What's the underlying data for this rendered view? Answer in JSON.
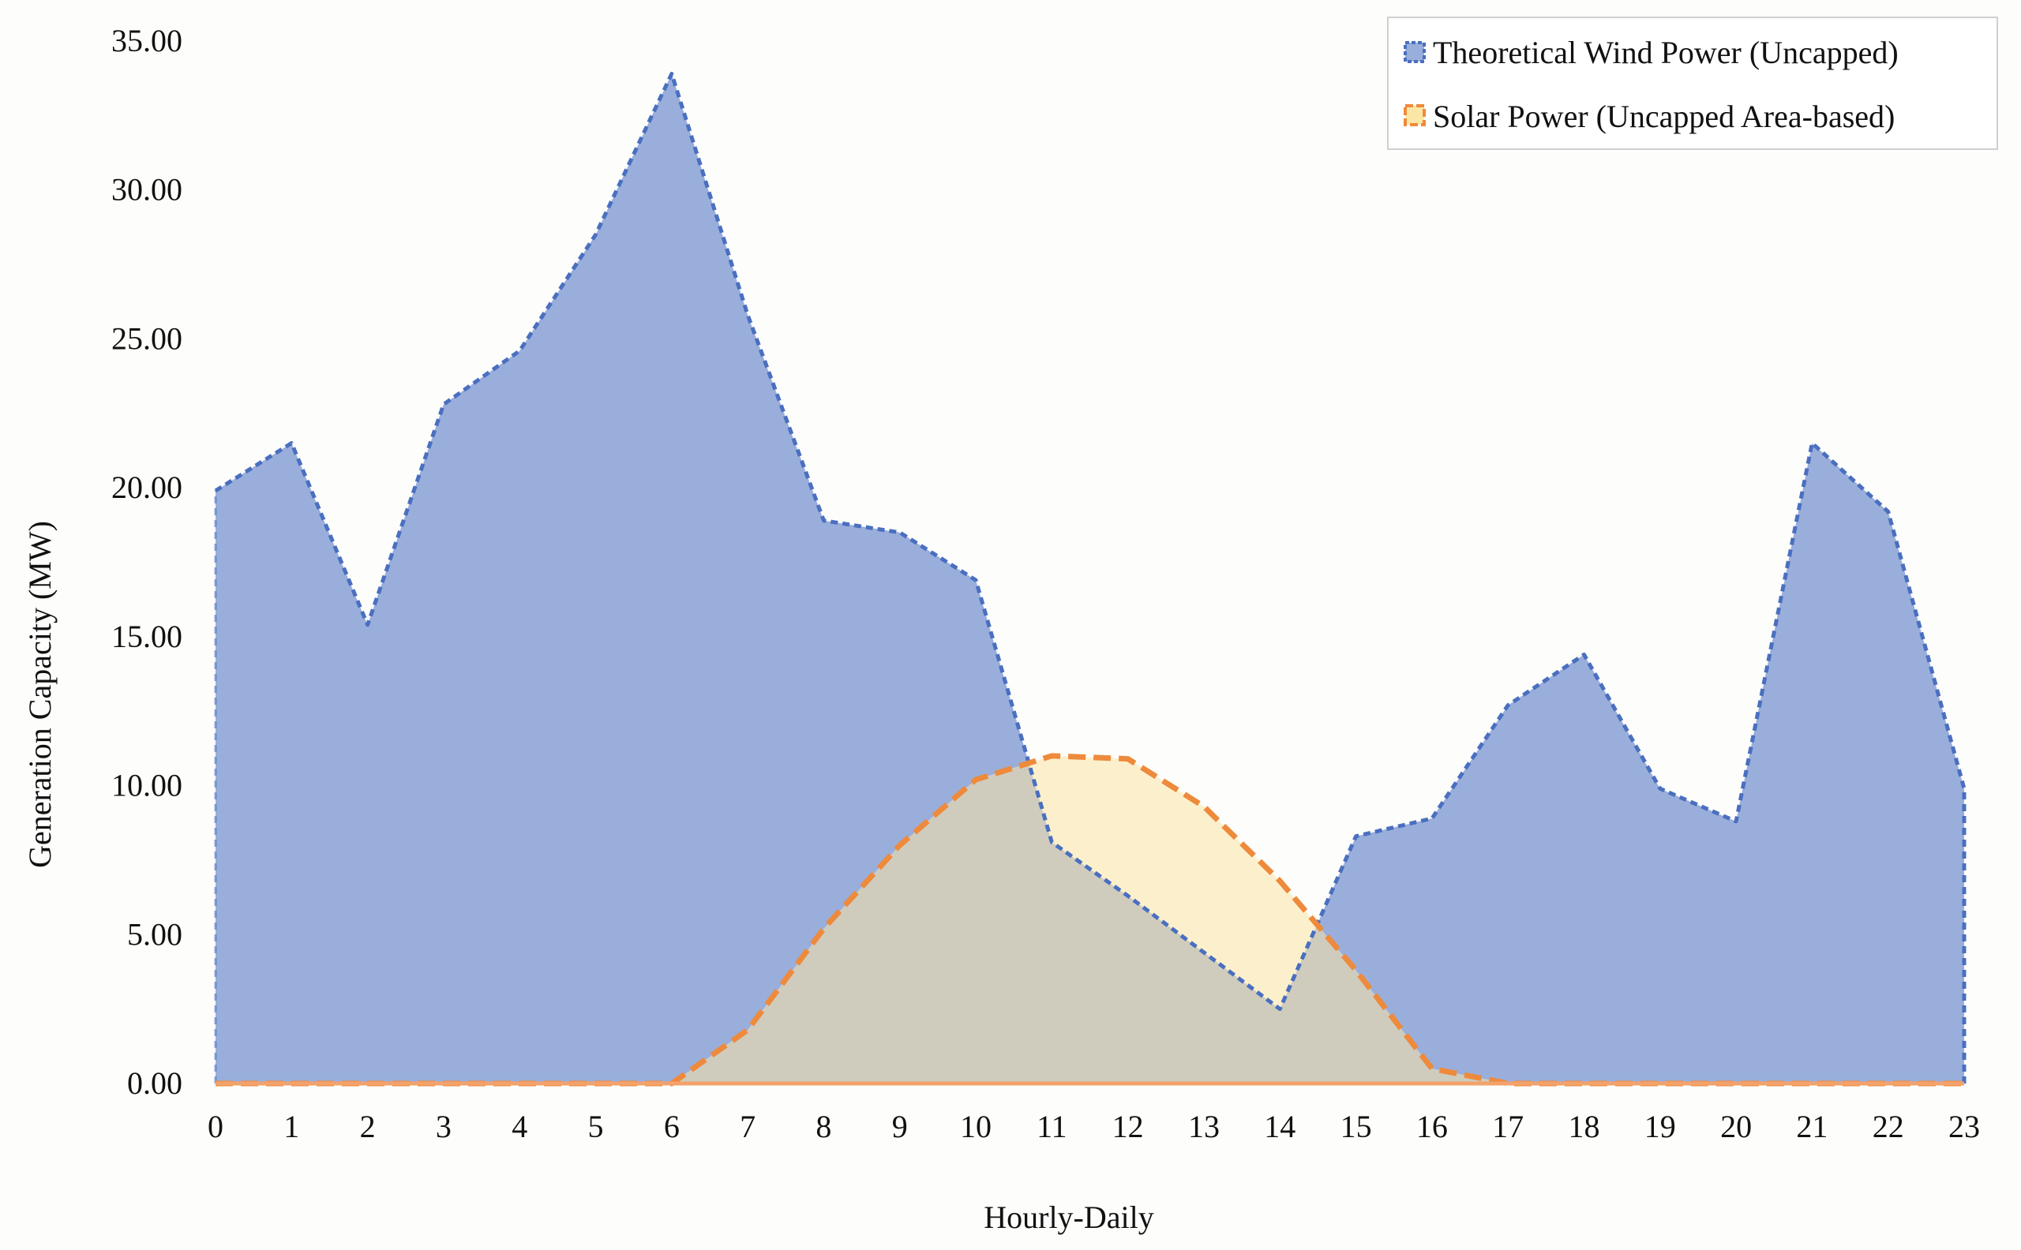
{
  "chart_data": {
    "type": "area",
    "xlabel": "Hourly-Daily",
    "ylabel": "Generation Capacity (MW)",
    "x": [
      0,
      1,
      2,
      3,
      4,
      5,
      6,
      7,
      8,
      9,
      10,
      11,
      12,
      13,
      14,
      15,
      16,
      17,
      18,
      19,
      20,
      21,
      22,
      23
    ],
    "ylim": [
      0,
      35
    ],
    "yticks": [
      "0.00",
      "5.00",
      "10.00",
      "15.00",
      "20.00",
      "25.00",
      "30.00",
      "35.00"
    ],
    "grid": false,
    "legend_position": "top-right",
    "series": [
      {
        "name": "Theoretical Wind Power (Uncapped)",
        "values": [
          19.9,
          21.5,
          15.4,
          22.8,
          24.6,
          28.5,
          33.9,
          25.8,
          18.9,
          18.5,
          16.9,
          8.1,
          6.3,
          4.4,
          2.5,
          8.3,
          8.9,
          12.7,
          14.4,
          9.9,
          8.8,
          21.5,
          19.2,
          9.9
        ],
        "line_color": "#4a6fc0",
        "fill_color": "#9aaedb"
      },
      {
        "name": "Solar Power (Uncapped Area-based)",
        "values": [
          0,
          0,
          0,
          0,
          0,
          0,
          0,
          1.8,
          5.2,
          8.0,
          10.2,
          11.0,
          10.9,
          9.3,
          6.8,
          3.8,
          0.5,
          0,
          0,
          0,
          0,
          0,
          0,
          0
        ],
        "line_color": "#ee8a3c",
        "fill_color": "#fbe6a6"
      }
    ]
  }
}
